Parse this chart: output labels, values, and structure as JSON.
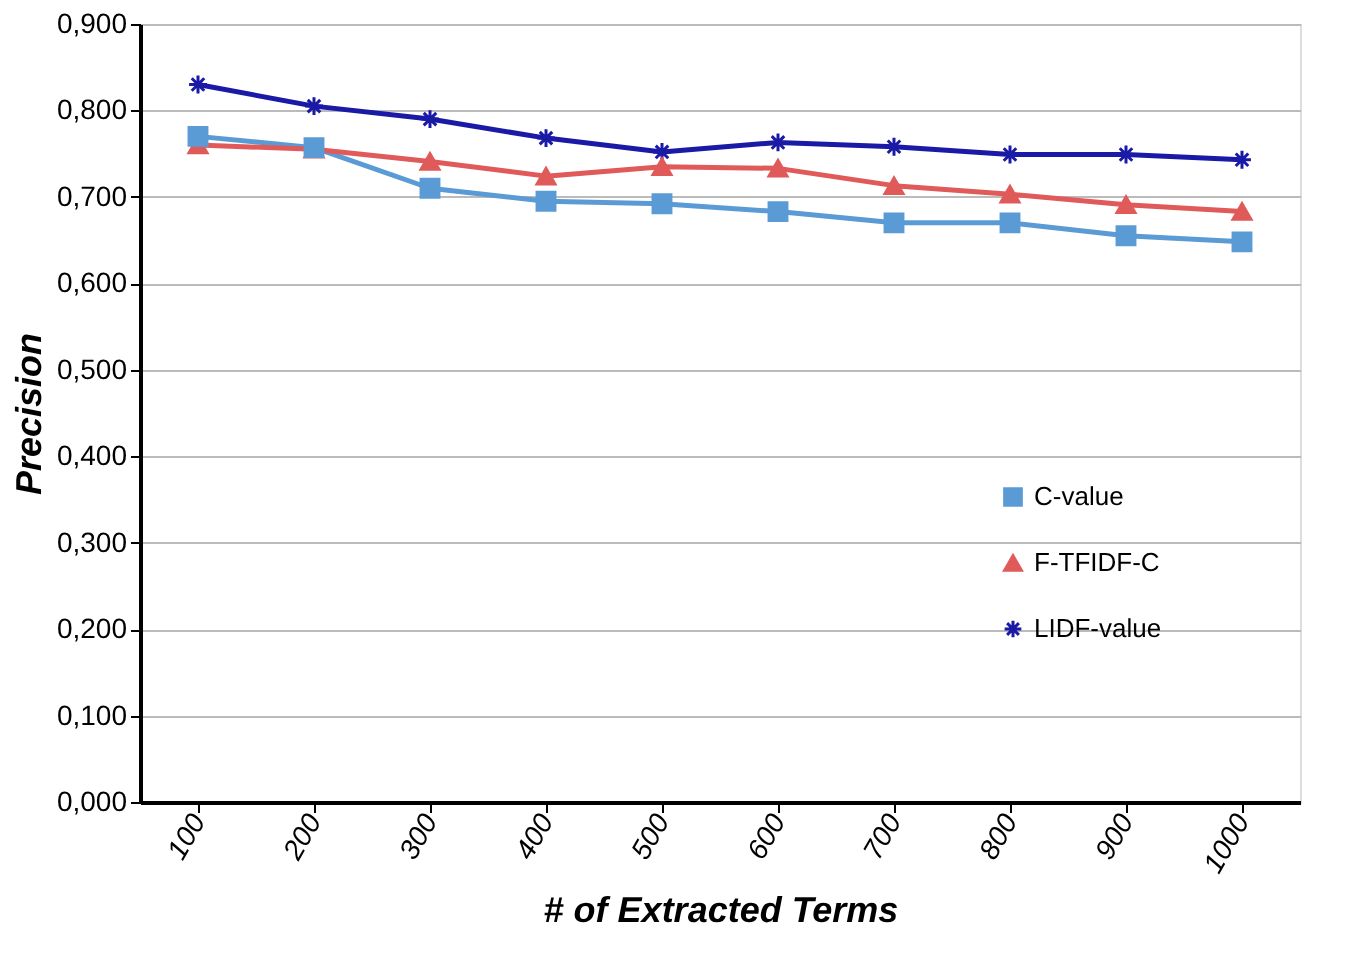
{
  "chart_data": {
    "type": "line",
    "xlabel": "# of Extracted Terms",
    "ylabel": "Precision",
    "categories": [
      "100",
      "200",
      "300",
      "400",
      "500",
      "600",
      "700",
      "800",
      "900",
      "1000"
    ],
    "series": [
      {
        "name": "C-value",
        "color": "#5b9bd5",
        "marker": "square",
        "values": [
          0.77,
          0.757,
          0.71,
          0.695,
          0.692,
          0.683,
          0.67,
          0.67,
          0.655,
          0.648
        ]
      },
      {
        "name": "F-TFIDF-C",
        "color": "#e05a5a",
        "marker": "triangle",
        "values": [
          0.76,
          0.755,
          0.741,
          0.724,
          0.735,
          0.733,
          0.713,
          0.703,
          0.691,
          0.683
        ]
      },
      {
        "name": "LIDF-value",
        "color": "#1a1aa6",
        "marker": "cross",
        "values": [
          0.83,
          0.805,
          0.79,
          0.768,
          0.752,
          0.763,
          0.758,
          0.749,
          0.749,
          0.743
        ]
      }
    ],
    "ylim": [
      0,
      0.9
    ],
    "yticks": [
      {
        "value": 0,
        "label": "0,000"
      },
      {
        "value": 0.1,
        "label": "0,100"
      },
      {
        "value": 0.2,
        "label": "0,200"
      },
      {
        "value": 0.3,
        "label": "0,300"
      },
      {
        "value": 0.4,
        "label": "0,400"
      },
      {
        "value": 0.5,
        "label": "0,500"
      },
      {
        "value": 0.6,
        "label": "0,600"
      },
      {
        "value": 0.7,
        "label": "0,700"
      },
      {
        "value": 0.8,
        "label": "0,800"
      },
      {
        "value": 0.9,
        "label": "0,900"
      }
    ],
    "grid": "y",
    "legend": "right",
    "line_style": "solid"
  }
}
